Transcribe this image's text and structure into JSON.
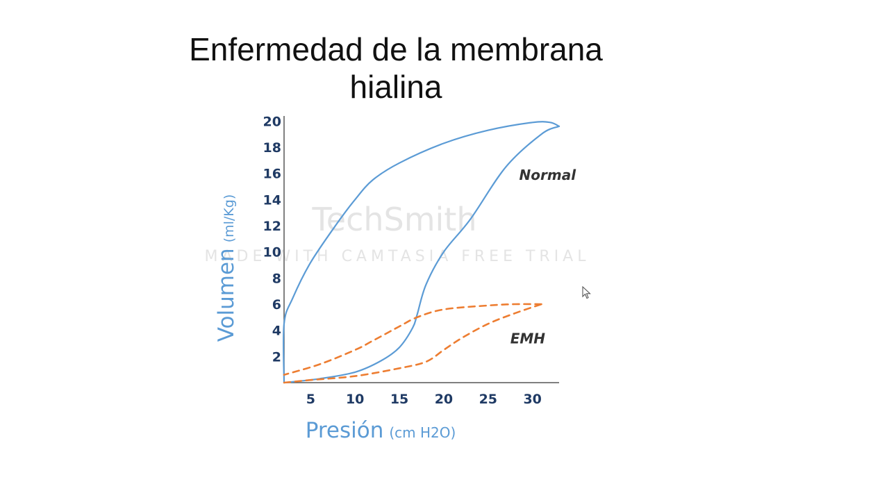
{
  "slide": {
    "title_line1": "Enfermedad de la membrana",
    "title_line2": "hialina"
  },
  "watermark": {
    "brand": "TechSmith",
    "notice": "MADE WITH CAMTASIA FREE TRIAL"
  },
  "chart_data": {
    "type": "line",
    "title": "Enfermedad de la membrana hialina",
    "xlabel": "Presión",
    "xlabel_unit": "(cm H2O)",
    "ylabel": "Volumen",
    "ylabel_unit": "(ml/Kg)",
    "xlim": [
      2,
      33
    ],
    "ylim": [
      0,
      20.5
    ],
    "x_ticks": [
      5,
      10,
      15,
      20,
      25,
      30
    ],
    "y_ticks": [
      2,
      4,
      6,
      8,
      10,
      12,
      14,
      16,
      18,
      20
    ],
    "grid": false,
    "legend": "inline labels",
    "series": [
      {
        "name": "Normal",
        "style": "solid",
        "color": "#5b9bd5",
        "label_at": [
          28.5,
          15.5
        ],
        "inflation": [
          [
            2,
            0
          ],
          [
            2,
            4.5
          ],
          [
            3,
            6.5
          ],
          [
            5,
            9.2
          ],
          [
            8,
            12.2
          ],
          [
            10,
            14
          ],
          [
            12,
            15.5
          ],
          [
            15,
            16.8
          ],
          [
            20,
            18.3
          ],
          [
            25,
            19.3
          ],
          [
            30,
            19.9
          ],
          [
            32,
            19.9
          ],
          [
            33,
            19.6
          ]
        ],
        "deflation": [
          [
            33,
            19.6
          ],
          [
            31,
            19
          ],
          [
            27,
            16.5
          ],
          [
            23,
            12.5
          ],
          [
            20,
            10
          ],
          [
            18,
            7.5
          ],
          [
            17,
            5.2
          ],
          [
            16.5,
            4.2
          ],
          [
            15,
            2.7
          ],
          [
            13,
            1.7
          ],
          [
            10,
            0.8
          ],
          [
            6,
            0.3
          ],
          [
            2,
            0
          ]
        ]
      },
      {
        "name": "EMH",
        "style": "dashed",
        "color": "#ed7d31",
        "label_at": [
          27.5,
          3
        ],
        "inflation": [
          [
            2,
            0
          ],
          [
            5,
            0.2
          ],
          [
            10,
            0.5
          ],
          [
            15,
            1.1
          ],
          [
            18,
            1.6
          ],
          [
            20,
            2.5
          ],
          [
            22,
            3.4
          ],
          [
            25,
            4.5
          ],
          [
            28,
            5.3
          ],
          [
            31,
            6
          ]
        ],
        "deflation": [
          [
            31,
            6
          ],
          [
            28,
            6
          ],
          [
            25,
            5.9
          ],
          [
            20,
            5.6
          ],
          [
            17,
            5
          ],
          [
            15,
            4.3
          ],
          [
            12,
            3.2
          ],
          [
            10,
            2.5
          ],
          [
            6,
            1.4
          ],
          [
            2,
            0.6
          ]
        ]
      }
    ]
  }
}
